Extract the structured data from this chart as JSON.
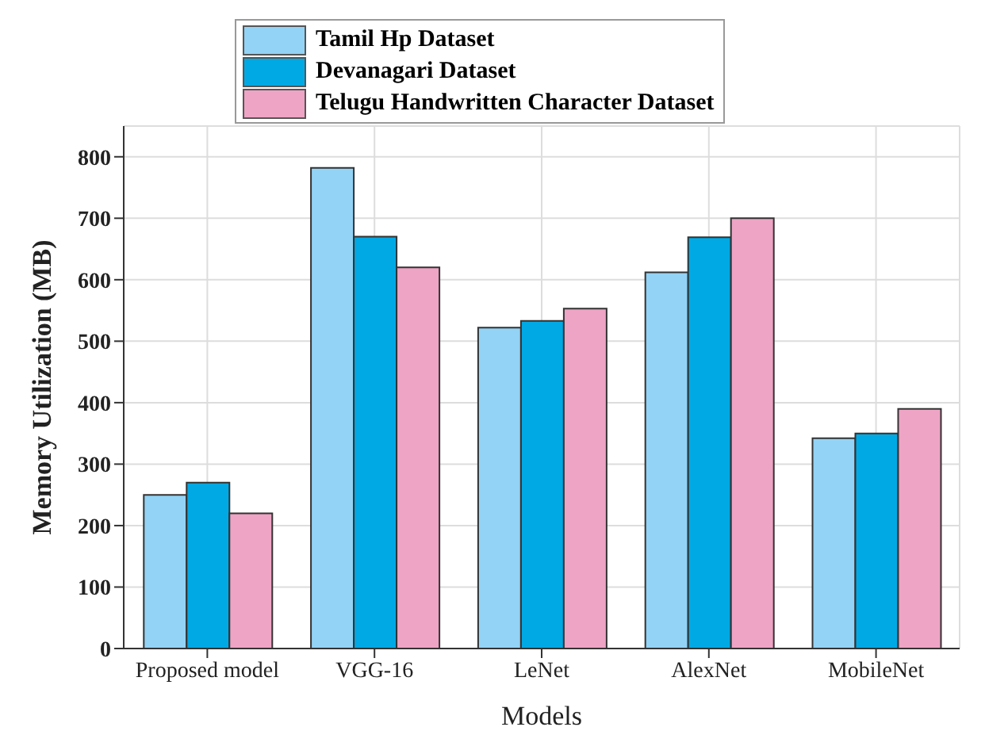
{
  "chart_data": {
    "type": "bar",
    "xlabel": "Models",
    "ylabel": "Memory Utilization (MB)",
    "categories": [
      "Proposed model",
      "VGG-16",
      "LeNet",
      "AlexNet",
      "MobileNet"
    ],
    "series": [
      {
        "name": "Tamil Hp Dataset",
        "color": "#93d3f5",
        "values": [
          250,
          782,
          522,
          612,
          342
        ]
      },
      {
        "name": "Devanagari Dataset",
        "color": "#00a9e4",
        "values": [
          270,
          670,
          533,
          669,
          350
        ]
      },
      {
        "name": "Telugu Handwritten Character Dataset",
        "color": "#eea4c5",
        "values": [
          220,
          620,
          553,
          700,
          390
        ]
      }
    ],
    "ylim": [
      0,
      850
    ],
    "yticks": [
      0,
      100,
      200,
      300,
      400,
      500,
      600,
      700,
      800
    ],
    "grid": true,
    "legend": "top"
  }
}
